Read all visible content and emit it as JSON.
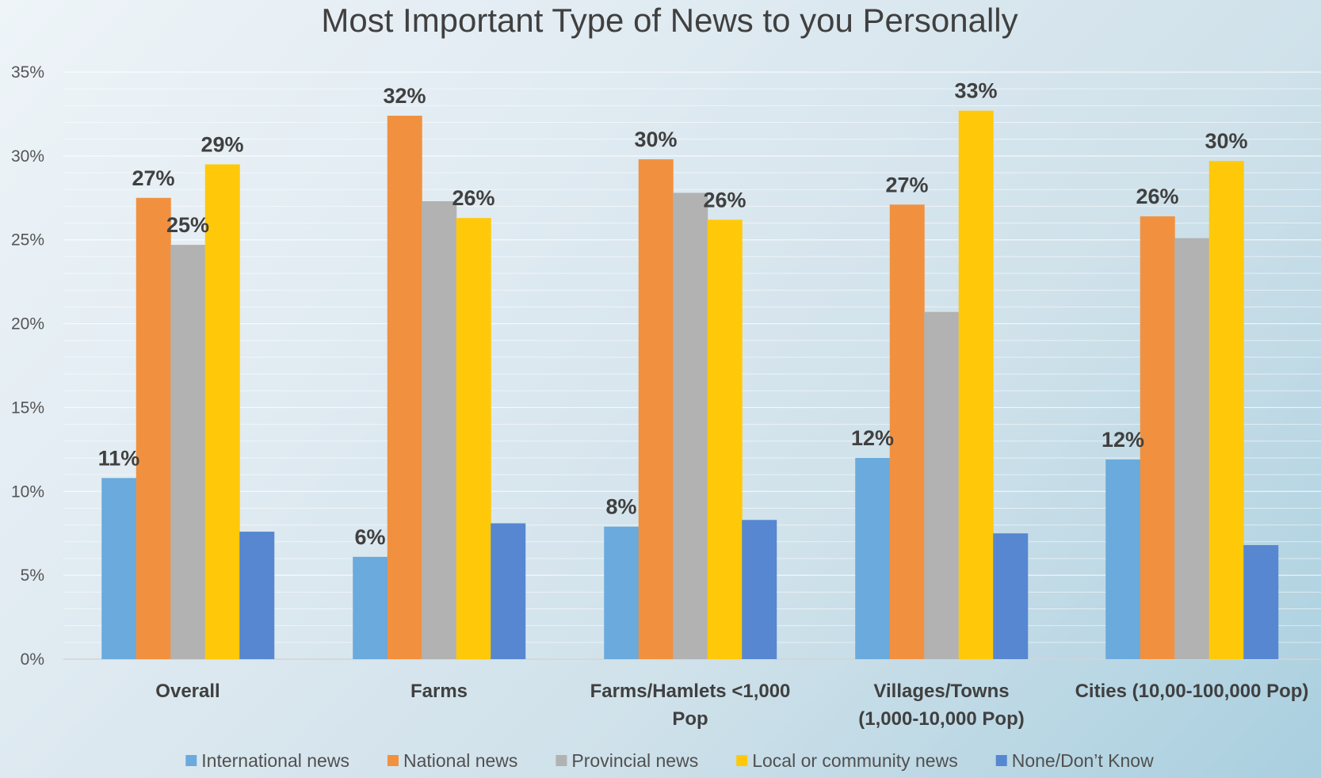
{
  "chart_data": {
    "type": "bar",
    "title": "Most Important Type of News to you Personally",
    "xlabel": "",
    "ylabel": "",
    "ylim": [
      0,
      35
    ],
    "ytick_step": 5,
    "ytick_suffix": "%",
    "grid": true,
    "legend_position": "bottom",
    "categories": [
      [
        "Overall"
      ],
      [
        "Farms"
      ],
      [
        "Farms/Hamlets <1,000",
        "Pop"
      ],
      [
        "Villages/Towns",
        "(1,000-10,000 Pop)"
      ],
      [
        "Cities (10,00-100,000 Pop)"
      ]
    ],
    "series": [
      {
        "name": "International news",
        "color": "#6aaadc",
        "values": [
          10.8,
          6.1,
          7.9,
          12.0,
          11.9
        ],
        "labels": [
          "11%",
          "6%",
          "8%",
          "12%",
          "12%"
        ]
      },
      {
        "name": "National news",
        "color": "#f1913f",
        "values": [
          27.5,
          32.4,
          29.8,
          27.1,
          26.4
        ],
        "labels": [
          "27%",
          "32%",
          "30%",
          "27%",
          "26%"
        ]
      },
      {
        "name": "Provincial news",
        "color": "#b2b2b2",
        "values": [
          24.7,
          27.3,
          27.8,
          20.7,
          25.1
        ],
        "labels": [
          "25%",
          "",
          "",
          "",
          ""
        ]
      },
      {
        "name": "Local or community news",
        "color": "#ffc90a",
        "values": [
          29.5,
          26.3,
          26.2,
          32.7,
          29.7
        ],
        "labels": [
          "29%",
          "26%",
          "26%",
          "33%",
          "30%"
        ]
      },
      {
        "name": "None/Don’t Know",
        "color": "#5687d0",
        "values": [
          7.6,
          8.1,
          8.3,
          7.5,
          6.8
        ],
        "labels": [
          "",
          "",
          "",
          "",
          ""
        ]
      }
    ]
  }
}
